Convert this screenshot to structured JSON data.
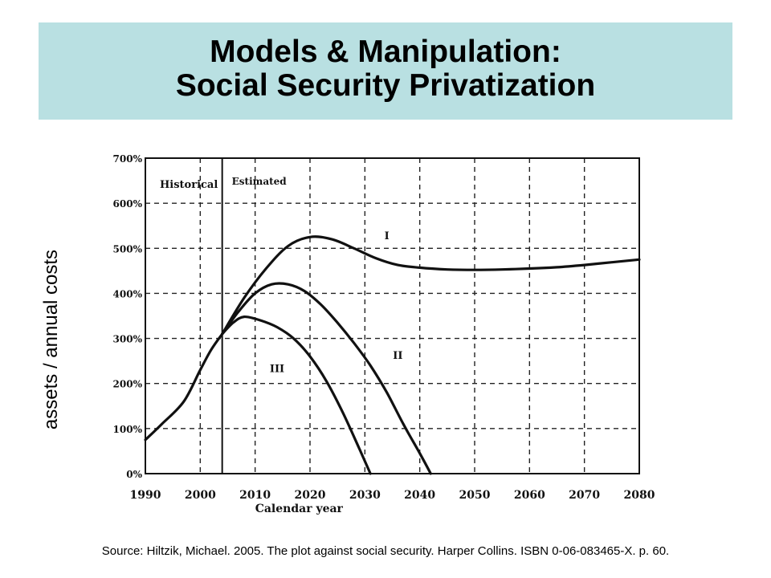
{
  "slide": {
    "title_line_1": "Models & Manipulation:",
    "title_line_2": "Social Security Privatization",
    "y_axis_label": "assets / annual costs",
    "source_note": "Source:  Hiltzik, Michael. 2005. The plot against social security.  Harper Collins.  ISBN 0-06-083465-X.  p. 60.",
    "banner_color": "#b9e0e2"
  },
  "chart_data": {
    "type": "line",
    "title": "",
    "xlabel": "Calendar year",
    "ylabel": "",
    "xlim": [
      1990,
      2080
    ],
    "ylim": [
      0,
      700
    ],
    "x_ticks": [
      1990,
      2000,
      2010,
      2020,
      2030,
      2040,
      2050,
      2060,
      2070,
      2080
    ],
    "y_ticks": [
      0,
      100,
      200,
      300,
      400,
      500,
      600,
      700
    ],
    "y_tick_labels": [
      "0%",
      "100%",
      "200%",
      "300%",
      "400%",
      "500%",
      "600%",
      "700%"
    ],
    "grid": true,
    "divider_year": 2004,
    "region_labels": [
      "Historical",
      "Estimated"
    ],
    "series": [
      {
        "name": "",
        "x": [
          1990,
          1993,
          1997,
          2000,
          2002,
          2004
        ],
        "y": [
          75,
          110,
          160,
          230,
          275,
          310
        ]
      },
      {
        "name": "I",
        "x": [
          2004,
          2008,
          2012,
          2016,
          2020,
          2024,
          2028,
          2032,
          2036,
          2040,
          2045,
          2050,
          2055,
          2060,
          2065,
          2070,
          2075,
          2080
        ],
        "y": [
          310,
          390,
          455,
          505,
          525,
          520,
          500,
          478,
          463,
          457,
          453,
          452,
          453,
          455,
          458,
          463,
          469,
          475
        ]
      },
      {
        "name": "II",
        "x": [
          2004,
          2007,
          2010,
          2013,
          2016,
          2019,
          2022,
          2025,
          2028,
          2031,
          2034,
          2037,
          2040,
          2042
        ],
        "y": [
          310,
          360,
          400,
          420,
          420,
          405,
          375,
          335,
          290,
          240,
          180,
          110,
          45,
          0
        ]
      },
      {
        "name": "III",
        "x": [
          2004,
          2006,
          2008,
          2011,
          2014,
          2017,
          2020,
          2023,
          2026,
          2029,
          2031
        ],
        "y": [
          310,
          335,
          348,
          340,
          325,
          300,
          260,
          205,
          135,
          55,
          0
        ]
      }
    ],
    "source": "Source:  Hiltzik, Michael. 2005. The plot against social security.  Harper Collins.  ISBN 0-06-083465-X.  p. 60."
  }
}
